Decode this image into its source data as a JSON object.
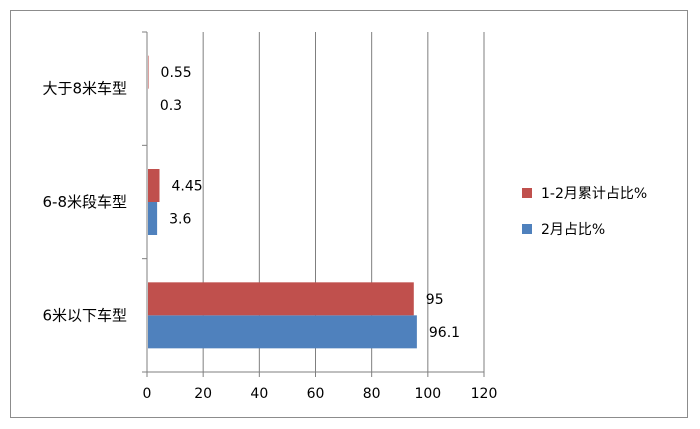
{
  "chart_data": {
    "type": "bar",
    "orientation": "horizontal",
    "categories": [
      "6米以下车型",
      "6-8米段车型",
      "大于8米车型"
    ],
    "series": [
      {
        "name": "2月占比%",
        "color": "#4f81bd",
        "values": [
          96.1,
          3.6,
          0.3
        ]
      },
      {
        "name": "1-2月累计占比%",
        "color": "#c0504d",
        "values": [
          95,
          4.45,
          0.55
        ]
      }
    ],
    "xlim": [
      0,
      120
    ],
    "xticks": [
      0,
      20,
      40,
      60,
      80,
      100,
      120
    ],
    "grid": true,
    "legend": "right",
    "data_labels": true,
    "title": "",
    "xlabel": "",
    "ylabel": ""
  }
}
